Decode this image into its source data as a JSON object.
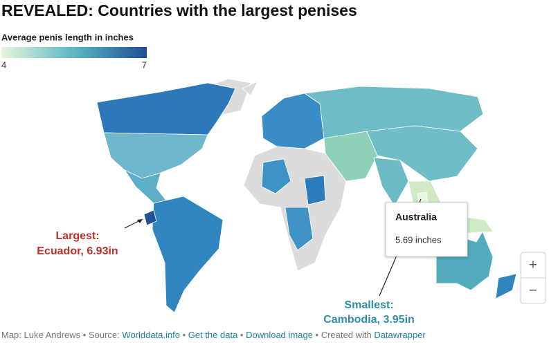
{
  "header": {
    "title": "REVEALED: Countries with the largest penises",
    "legend_title": "Average penis length in inches"
  },
  "legend": {
    "min": 4,
    "max": 7,
    "colors": [
      "#e8f5dc",
      "#5bb8c4",
      "#1f4e95"
    ]
  },
  "regions": [
    {
      "name": "Australia",
      "value": 5.69
    },
    {
      "name": "Ecuador",
      "value": 6.93
    },
    {
      "name": "Cambodia",
      "value": 3.95
    }
  ],
  "tooltip": {
    "title": "Australia",
    "text": "5.69 inches"
  },
  "annotations": {
    "largest": [
      "Largest:",
      "Ecuador, 6.93in"
    ],
    "smallest": [
      "Smallest:",
      "Cambodia, 3.95in"
    ]
  },
  "zoom": [
    "+",
    "−"
  ],
  "footer": {
    "credit": "Map: Luke Andrews • Source: ",
    "source": "Worlddata.info",
    "sep1": " • ",
    "data": "Get the data",
    "sep2": " • ",
    "download": "Download image",
    "sep3": " • Created with ",
    "tool": "Datawrapper"
  }
}
